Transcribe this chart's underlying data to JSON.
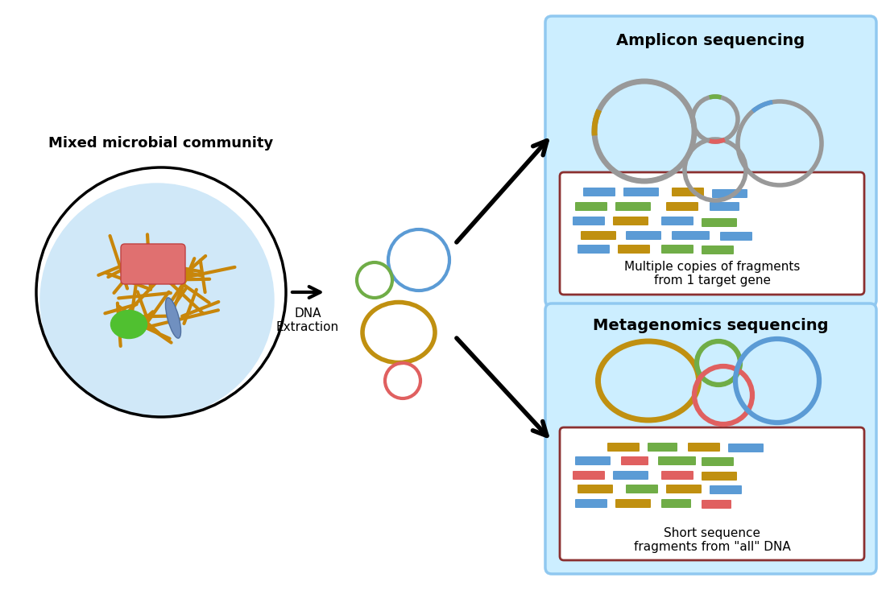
{
  "bg_color": "#ffffff",
  "title_amplicon": "Amplicon sequencing",
  "title_metagenomics": "Metagenomics sequencing",
  "label_community": "Mixed microbial community",
  "label_dna": "DNA\nExtraction",
  "label_amplicon_desc": "Multiple copies of fragments\nfrom 1 target gene",
  "label_metagenomics_desc": "Short sequence\nfragments from \"all\" DNA",
  "colors": {
    "blue": "#5B9BD5",
    "green": "#70AD47",
    "orange": "#C09010",
    "red": "#E06060",
    "gray": "#999999",
    "light_blue_bg": "#CCEEFF",
    "dark_red_box": "#8B3030",
    "cell_bg": "#D0E8F8"
  }
}
